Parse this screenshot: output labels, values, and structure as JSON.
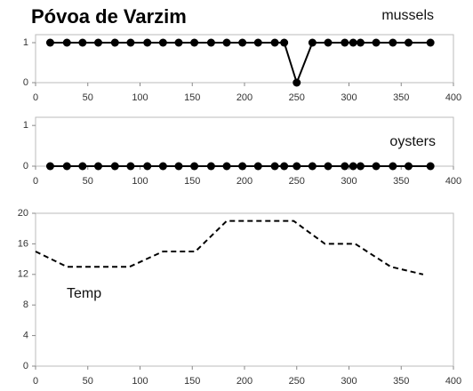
{
  "title": "Póvoa de Varzim",
  "chart_data": [
    {
      "type": "line",
      "markers": true,
      "x": [
        14,
        30,
        45,
        60,
        76,
        91,
        107,
        122,
        137,
        152,
        168,
        183,
        198,
        213,
        229,
        238,
        250,
        265,
        280,
        296,
        304,
        311,
        326,
        342,
        357,
        378
      ],
      "series": [
        {
          "name": "mussels",
          "color": "#000000",
          "values": [
            1,
            1,
            1,
            1,
            1,
            1,
            1,
            1,
            1,
            1,
            1,
            1,
            1,
            1,
            1,
            1,
            0,
            1,
            1,
            1,
            1,
            1,
            1,
            1,
            1,
            1
          ]
        }
      ],
      "xlim": [
        0,
        400
      ],
      "xticks": [
        0,
        50,
        100,
        150,
        200,
        250,
        300,
        350,
        400
      ],
      "ylim": [
        0,
        1.2
      ],
      "yticks": [
        0,
        1
      ]
    },
    {
      "type": "line",
      "markers": true,
      "x": [
        14,
        30,
        45,
        60,
        76,
        91,
        107,
        122,
        137,
        152,
        168,
        183,
        198,
        213,
        229,
        238,
        250,
        265,
        280,
        296,
        304,
        311,
        326,
        342,
        357,
        378
      ],
      "series": [
        {
          "name": "oysters",
          "color": "#000000",
          "values": [
            0,
            0,
            0,
            0,
            0,
            0,
            0,
            0,
            0,
            0,
            0,
            0,
            0,
            0,
            0,
            0,
            0,
            0,
            0,
            0,
            0,
            0,
            0,
            0,
            0,
            0
          ]
        }
      ],
      "xlim": [
        0,
        400
      ],
      "xticks": [
        0,
        50,
        100,
        150,
        200,
        250,
        300,
        350,
        400
      ],
      "ylim": [
        0,
        1.2
      ],
      "yticks": [
        0,
        1
      ]
    },
    {
      "type": "line",
      "markers": false,
      "dashed": true,
      "x": [
        0,
        30,
        90,
        122,
        153,
        183,
        247,
        277,
        306,
        340,
        371
      ],
      "series": [
        {
          "name": "Temp",
          "color": "#000000",
          "values": [
            15,
            13,
            13,
            15,
            15,
            19,
            19,
            16,
            16,
            13,
            12
          ]
        }
      ],
      "xlim": [
        0,
        400
      ],
      "xticks": [
        0,
        50,
        100,
        150,
        200,
        250,
        300,
        350,
        400
      ],
      "ylim": [
        0,
        20
      ],
      "yticks": [
        0,
        4,
        8,
        12,
        16,
        20
      ]
    }
  ]
}
